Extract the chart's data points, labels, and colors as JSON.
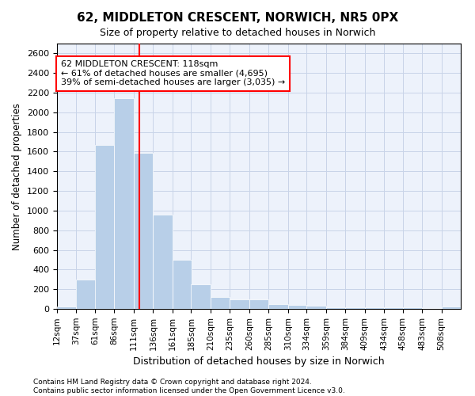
{
  "title1": "62, MIDDLETON CRESCENT, NORWICH, NR5 0PX",
  "title2": "Size of property relative to detached houses in Norwich",
  "xlabel": "Distribution of detached houses by size in Norwich",
  "ylabel": "Number of detached properties",
  "bin_labels": [
    "12sqm",
    "37sqm",
    "61sqm",
    "86sqm",
    "111sqm",
    "136sqm",
    "161sqm",
    "185sqm",
    "210sqm",
    "235sqm",
    "260sqm",
    "285sqm",
    "310sqm",
    "334sqm",
    "359sqm",
    "384sqm",
    "409sqm",
    "434sqm",
    "458sqm",
    "483sqm",
    "508sqm"
  ],
  "bin_starts": [
    12,
    37,
    61,
    86,
    111,
    136,
    161,
    185,
    210,
    235,
    260,
    285,
    310,
    334,
    359,
    384,
    409,
    434,
    458,
    483,
    508
  ],
  "bin_width": 25,
  "values": [
    25,
    300,
    1670,
    2140,
    1590,
    960,
    500,
    250,
    120,
    100,
    95,
    50,
    40,
    35,
    20,
    20,
    20,
    20,
    20,
    5,
    25
  ],
  "bar_color": "#b8cfe8",
  "bar_edge_color": "white",
  "grid_color": "#c8d4e8",
  "background_color": "#edf2fb",
  "property_line_x": 118,
  "property_line_color": "red",
  "annotation_line1": "62 MIDDLETON CRESCENT: 118sqm",
  "annotation_line2": "← 61% of detached houses are smaller (4,695)",
  "annotation_line3": "39% of semi-detached houses are larger (3,035) →",
  "annotation_box_color": "white",
  "annotation_box_edge": "red",
  "ylim": [
    0,
    2700
  ],
  "xlim_min": 12,
  "xlim_max": 533,
  "yticks": [
    0,
    200,
    400,
    600,
    800,
    1000,
    1200,
    1400,
    1600,
    1800,
    2000,
    2200,
    2400,
    2600
  ],
  "footer1": "Contains HM Land Registry data © Crown copyright and database right 2024.",
  "footer2": "Contains public sector information licensed under the Open Government Licence v3.0."
}
